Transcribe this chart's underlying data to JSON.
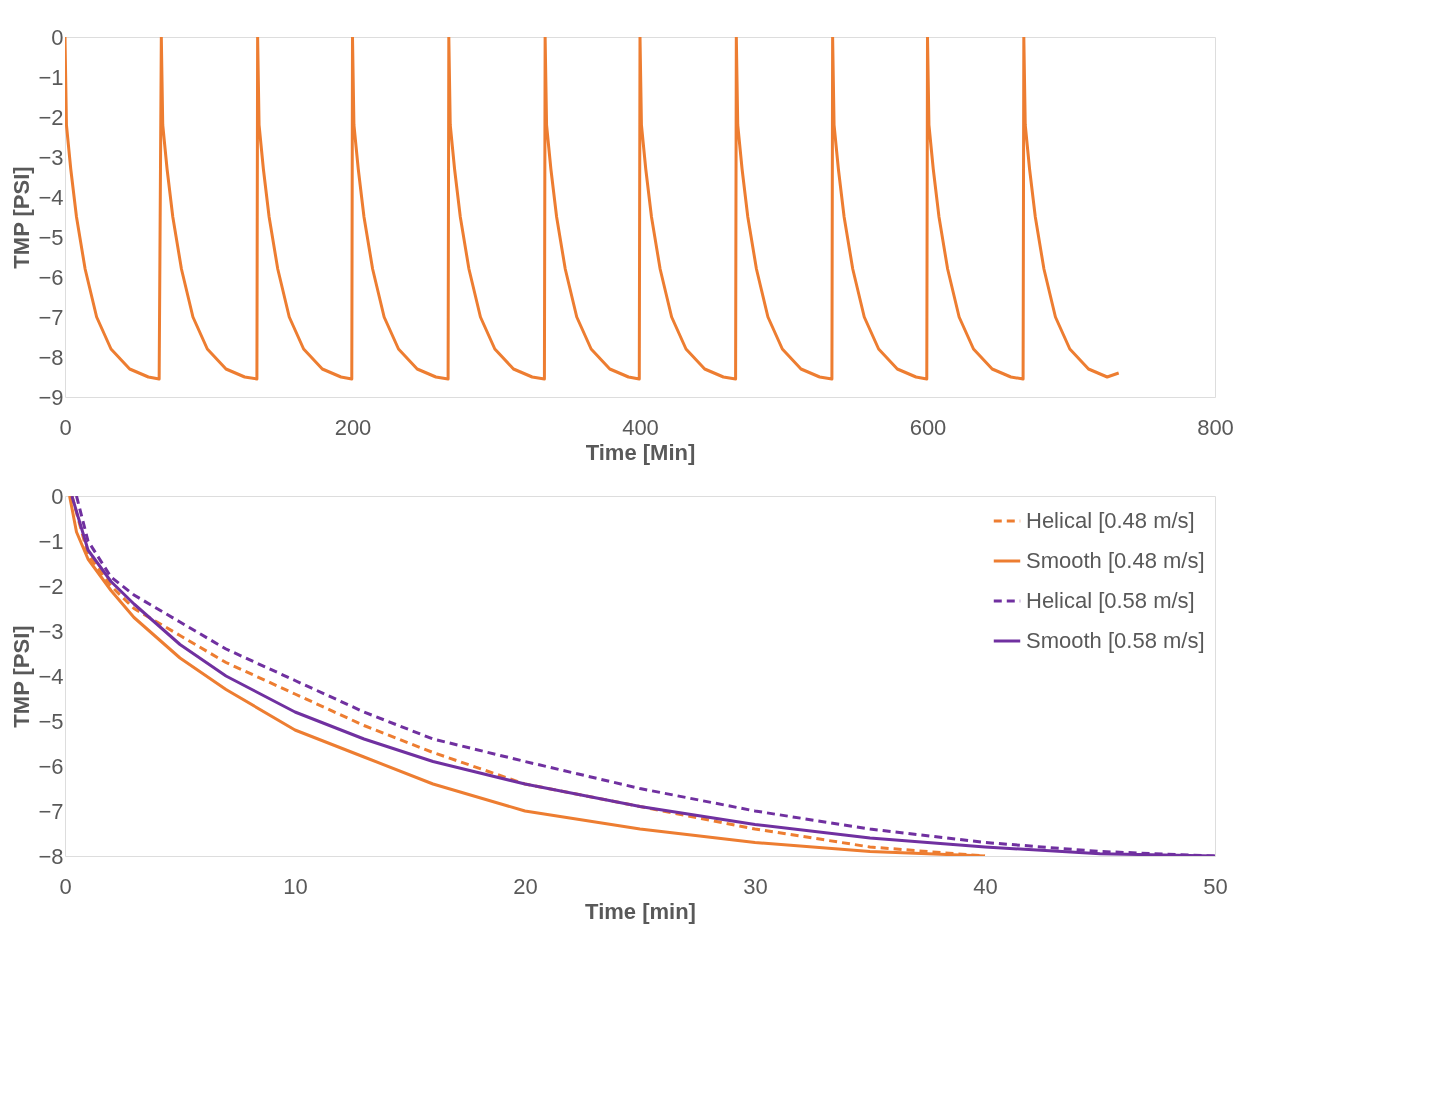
{
  "chart_data": [
    {
      "type": "line",
      "xlabel": "Time [Min]",
      "ylabel": "TMP [PSI]",
      "xlim": [
        0,
        800
      ],
      "ylim": [
        -9,
        0
      ],
      "xticks": [
        0,
        200,
        400,
        600,
        800
      ],
      "yticks": [
        0,
        -1,
        -2,
        -3,
        -4,
        -5,
        -6,
        -7,
        -8,
        -9
      ],
      "grid": false,
      "legend": false,
      "line_style": "solid",
      "series": [
        {
          "color": "#ed7d31",
          "x": [
            0,
            1,
            4,
            8,
            14,
            22,
            32,
            45,
            58,
            65.5,
            67,
            68,
            71,
            75,
            81,
            89,
            99,
            112,
            125,
            133.5,
            134,
            135,
            138,
            142,
            148,
            156,
            166,
            179,
            192,
            199.5,
            200,
            201,
            204,
            208,
            214,
            222,
            232,
            245,
            258,
            266.5,
            267,
            268,
            271,
            275,
            281,
            289,
            299,
            312,
            325,
            333.5,
            334,
            335,
            338,
            342,
            348,
            356,
            366,
            379,
            392,
            399.5,
            400,
            401,
            404,
            408,
            414,
            422,
            432,
            445,
            458,
            466.5,
            467,
            468,
            471,
            475,
            481,
            489,
            499,
            512,
            525,
            533.5,
            534,
            535,
            538,
            542,
            548,
            556,
            566,
            579,
            592,
            599.5,
            600,
            601,
            604,
            608,
            614,
            622,
            632,
            645,
            658,
            666.5,
            667,
            668,
            671,
            675,
            681,
            689,
            699,
            712,
            725,
            733
          ],
          "values": [
            0,
            -2.2,
            -3.3,
            -4.5,
            -5.8,
            -7.0,
            -7.8,
            -8.3,
            -8.5,
            -8.55,
            0,
            -2.2,
            -3.3,
            -4.5,
            -5.8,
            -7.0,
            -7.8,
            -8.3,
            -8.5,
            -8.55,
            0,
            -2.2,
            -3.3,
            -4.5,
            -5.8,
            -7.0,
            -7.8,
            -8.3,
            -8.5,
            -8.55,
            0,
            -2.2,
            -3.3,
            -4.5,
            -5.8,
            -7.0,
            -7.8,
            -8.3,
            -8.5,
            -8.55,
            0,
            -2.2,
            -3.3,
            -4.5,
            -5.8,
            -7.0,
            -7.8,
            -8.3,
            -8.5,
            -8.55,
            0,
            -2.2,
            -3.3,
            -4.5,
            -5.8,
            -7.0,
            -7.8,
            -8.3,
            -8.5,
            -8.55,
            0,
            -2.2,
            -3.3,
            -4.5,
            -5.8,
            -7.0,
            -7.8,
            -8.3,
            -8.5,
            -8.55,
            0,
            -2.2,
            -3.3,
            -4.5,
            -5.8,
            -7.0,
            -7.8,
            -8.3,
            -8.5,
            -8.55,
            0,
            -2.2,
            -3.3,
            -4.5,
            -5.8,
            -7.0,
            -7.8,
            -8.3,
            -8.5,
            -8.55,
            0,
            -2.2,
            -3.3,
            -4.5,
            -5.8,
            -7.0,
            -7.8,
            -8.3,
            -8.5,
            -8.55,
            0,
            -2.2,
            -3.3,
            -4.5,
            -5.8,
            -7.0,
            -7.8,
            -8.3,
            -8.5,
            -8.4
          ]
        }
      ]
    },
    {
      "type": "line",
      "xlabel": "Time [min]",
      "ylabel": "TMP [PSI]",
      "xlim": [
        0,
        50
      ],
      "ylim": [
        -8,
        0
      ],
      "xticks": [
        0,
        10,
        20,
        30,
        40,
        50
      ],
      "yticks": [
        0,
        -1,
        -2,
        -3,
        -4,
        -5,
        -6,
        -7,
        -8
      ],
      "grid": false,
      "legend": "top right",
      "series": [
        {
          "name": "Helical [0.48 m/s]",
          "color": "#ed7d31",
          "line_style": "dashed",
          "x": [
            0.3,
            1,
            2,
            3,
            5,
            7,
            10,
            13,
            16,
            20,
            25,
            30,
            35,
            40
          ],
          "values": [
            0,
            -1.3,
            -2.0,
            -2.5,
            -3.1,
            -3.7,
            -4.4,
            -5.1,
            -5.7,
            -6.4,
            -6.9,
            -7.4,
            -7.8,
            -8.0
          ]
        },
        {
          "name": "Smooth [0.48 m/s]",
          "color": "#ed7d31",
          "line_style": "solid",
          "x": [
            0.2,
            0.5,
            1,
            2,
            3,
            5,
            7,
            10,
            13,
            16,
            20,
            25,
            30,
            35,
            40
          ],
          "values": [
            0,
            -0.8,
            -1.4,
            -2.1,
            -2.7,
            -3.6,
            -4.3,
            -5.2,
            -5.8,
            -6.4,
            -7.0,
            -7.4,
            -7.7,
            -7.9,
            -8.0
          ]
        },
        {
          "name": "Helical [0.58 m/s]",
          "color": "#7030a0",
          "line_style": "dashed",
          "x": [
            0.5,
            1,
            2,
            3,
            5,
            7,
            10,
            13,
            16,
            20,
            25,
            30,
            35,
            40,
            45,
            50
          ],
          "values": [
            0,
            -1.0,
            -1.8,
            -2.2,
            -2.8,
            -3.4,
            -4.1,
            -4.8,
            -5.4,
            -5.9,
            -6.5,
            -7.0,
            -7.4,
            -7.7,
            -7.9,
            -8.0
          ]
        },
        {
          "name": "Smooth [0.58 m/s]",
          "color": "#7030a0",
          "line_style": "solid",
          "x": [
            0.3,
            1,
            2,
            3,
            5,
            7,
            10,
            13,
            16,
            20,
            25,
            30,
            35,
            40,
            45,
            50
          ],
          "values": [
            0,
            -1.2,
            -1.9,
            -2.4,
            -3.3,
            -4.0,
            -4.8,
            -5.4,
            -5.9,
            -6.4,
            -6.9,
            -7.3,
            -7.6,
            -7.8,
            -7.95,
            -8.0
          ]
        }
      ]
    }
  ]
}
